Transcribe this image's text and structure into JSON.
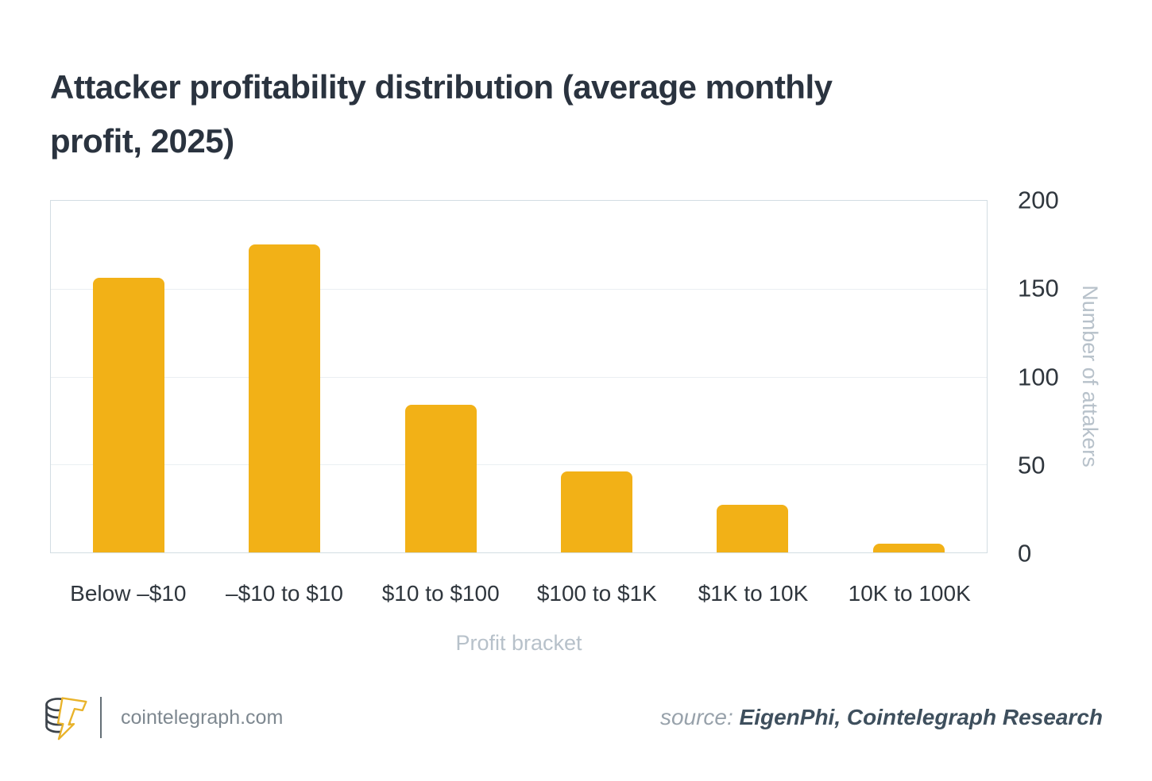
{
  "title": {
    "lines": [
      "Attacker profitability distribution (average monthly",
      "profit, 2025)"
    ]
  },
  "chart_data": {
    "type": "bar",
    "title": "Attacker profitability distribution (average monthly profit, 2025)",
    "categories": [
      "Below –$10",
      "–$10 to $10",
      "$10 to $100",
      "$100 to $1K",
      "$1K to 10K",
      "10K to 100K"
    ],
    "values": [
      156,
      175,
      84,
      46,
      27,
      5
    ],
    "xlabel": "Profit bracket",
    "ylabel": "Number of attakers",
    "ylim": [
      0,
      200
    ],
    "yticks": [
      0,
      50,
      100,
      150,
      200
    ],
    "y_axis_side": "right",
    "grid": true,
    "legend_position": "none",
    "bar_color": "#F2B117"
  },
  "colors": {
    "bar": "#F2B117",
    "title_text": "#2A333F",
    "axis_text": "#2F363D",
    "muted_text": "#B7C1CA",
    "gridline": "#EAEFF2",
    "plot_border": "#D3DDE3",
    "footer_text": "#7E8890",
    "source_label": "#98A2AB",
    "source_value": "#3E4F5D",
    "logo_dark": "#3C434B",
    "logo_yellow": "#E9B32A"
  },
  "footer": {
    "site": "cointelegraph.com",
    "source_label": "source:",
    "source_value": "EigenPhi, Cointelegraph Research",
    "logo": "cointelegraph-logo"
  }
}
